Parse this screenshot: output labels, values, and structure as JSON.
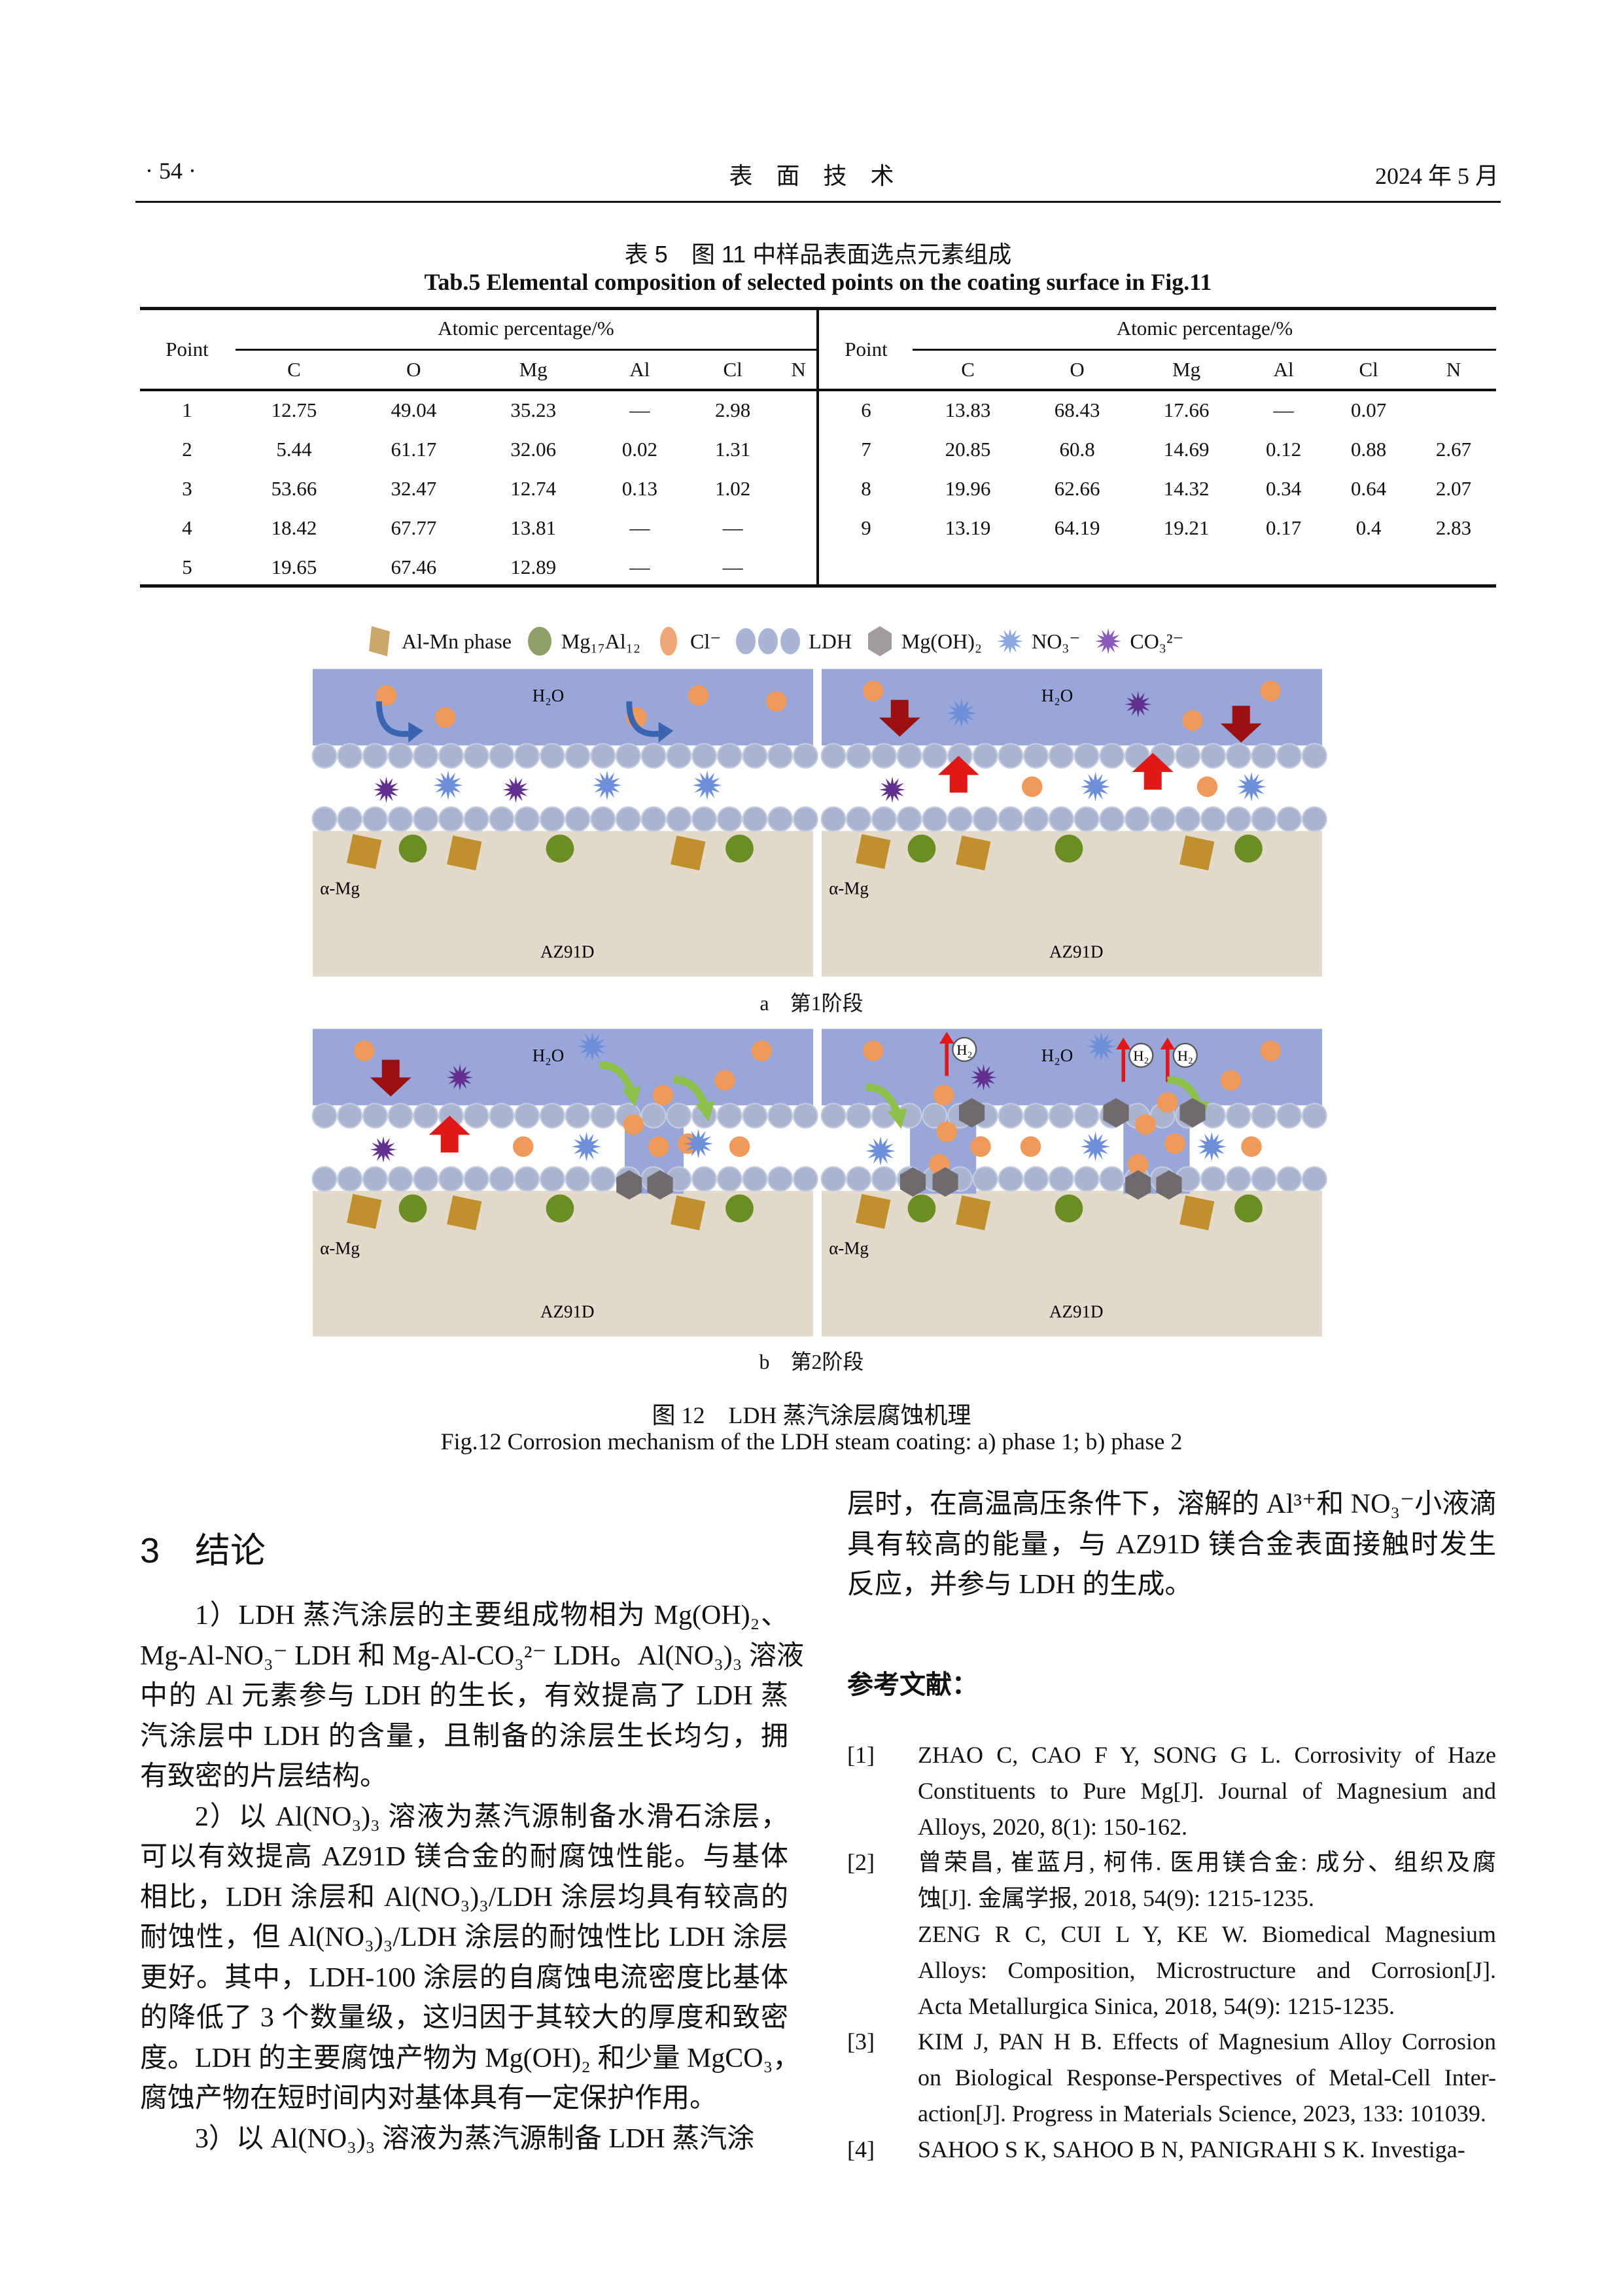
{
  "header": {
    "page": "· 54 ·",
    "journal": "表　面　技　术",
    "date": "2024 年 5 月"
  },
  "table": {
    "title_cn": "表 5　图 11 中样品表面选点元素组成",
    "title_en": "Tab.5 Elemental composition of selected points on the coating surface in Fig.11",
    "point_label": "Point",
    "group_label": "Atomic percentage/%",
    "columns": [
      "C",
      "O",
      "Mg",
      "Al",
      "Cl",
      "N"
    ],
    "left_rows": [
      [
        "1",
        "12.75",
        "49.04",
        "35.23",
        "—",
        "2.98",
        ""
      ],
      [
        "2",
        "5.44",
        "61.17",
        "32.06",
        "0.02",
        "1.31",
        ""
      ],
      [
        "3",
        "53.66",
        "32.47",
        "12.74",
        "0.13",
        "1.02",
        ""
      ],
      [
        "4",
        "18.42",
        "67.77",
        "13.81",
        "—",
        "—",
        ""
      ],
      [
        "5",
        "19.65",
        "67.46",
        "12.89",
        "—",
        "—",
        ""
      ]
    ],
    "right_rows": [
      [
        "6",
        "13.83",
        "68.43",
        "17.66",
        "—",
        "0.07",
        ""
      ],
      [
        "7",
        "20.85",
        "60.8",
        "14.69",
        "0.12",
        "0.88",
        "2.67"
      ],
      [
        "8",
        "19.96",
        "62.66",
        "14.32",
        "0.34",
        "0.64",
        "2.07"
      ],
      [
        "9",
        "13.19",
        "64.19",
        "19.21",
        "0.17",
        "0.4",
        "2.83"
      ]
    ]
  },
  "figure": {
    "legend": [
      {
        "icon": "al-mn-square",
        "label": "Al-Mn phase",
        "color": "#c9a86a"
      },
      {
        "icon": "green-circle",
        "label": "Mg₁₇Al₁₂",
        "color": "#8fa06a"
      },
      {
        "icon": "orange-circle",
        "label": "Cl⁻",
        "color": "#eea878"
      },
      {
        "icon": "ldh-circles",
        "label": "LDH",
        "color": "#aab4d4"
      },
      {
        "icon": "gray-hexagon",
        "label": "Mg(OH)₂",
        "color": "#a09c9c"
      },
      {
        "icon": "blue-star",
        "label": "NO₃⁻",
        "color": "#8fa8e0"
      },
      {
        "icon": "purple-star",
        "label": "CO₃²⁻",
        "color": "#8a5ab8"
      }
    ],
    "panel_text": {
      "water": "H₂O",
      "alpha": "α-Mg",
      "substrate": "AZ91D",
      "h2": "H₂"
    },
    "label_a": "a　第1阶段",
    "label_b": "b　第2阶段",
    "caption_cn": "图 12　LDH 蒸汽涂层腐蚀机理",
    "caption_en": "Fig.12 Corrosion mechanism of the LDH steam coating: a) phase 1; b) phase 2",
    "colors": {
      "water": "#98a6d9",
      "ldh": "#aab3cf",
      "substrate": "#e4dacb",
      "cl": "#ef9a5a",
      "mg17al12": "#6b8e23",
      "almn": "#bf902c",
      "no3": "#6d8fd8",
      "co3": "#62308f",
      "mgoh2": "#6e6a6e",
      "arrow_down": "#9a1010",
      "arrow_up": "#e01818"
    }
  },
  "section": {
    "heading": "3　结论"
  },
  "left_paragraphs": [
    [
      "1）LDH 蒸汽涂层的主要组成物相为 Mg(OH)₂、",
      "Mg-Al-NO₃⁻ LDH 和 Mg-Al-CO₃²⁻ LDH。Al(NO₃)₃ 溶液",
      "中的 Al 元素参与 LDH 的生长，有效提高了 LDH 蒸",
      "汽涂层中 LDH 的含量，且制备的涂层生长均匀，拥",
      "有致密的片层结构。"
    ],
    [
      "2）以 Al(NO₃)₃ 溶液为蒸汽源制备水滑石涂层，",
      "可以有效提高 AZ91D 镁合金的耐腐蚀性能。与基体",
      "相比，LDH 涂层和 Al(NO₃)₃/LDH 涂层均具有较高的",
      "耐蚀性，但 Al(NO₃)₃/LDH 涂层的耐蚀性比 LDH 涂层",
      "更好。其中，LDH-100 涂层的自腐蚀电流密度比基体",
      "的降低了 3 个数量级，这归因于其较大的厚度和致密",
      "度。LDH 的主要腐蚀产物为 Mg(OH)₂ 和少量 MgCO₃，",
      "腐蚀产物在短时间内对基体具有一定保护作用。"
    ],
    [
      "3）以 Al(NO₃)₃ 溶液为蒸汽源制备 LDH 蒸汽涂"
    ]
  ],
  "right_paragraph": [
    "层时，在高温高压条件下，溶解的 Al³⁺和 NO₃⁻小液滴",
    "具有较高的能量，与 AZ91D 镁合金表面接触时发生",
    "反应，并参与 LDH 的生成。"
  ],
  "references": {
    "heading": "参考文献：",
    "items": [
      {
        "num": "[1]",
        "lines": [
          "ZHAO C, CAO F Y, SONG G L. Corrosivity of Haze",
          "Constituents to Pure Mg[J]. Journal of Magnesium and",
          "Alloys, 2020, 8(1): 150-162."
        ]
      },
      {
        "num": "[2]",
        "lines": [
          "曾荣昌, 崔蓝月, 柯伟. 医用镁合金: 成分、组织及腐",
          "蚀[J]. 金属学报, 2018, 54(9): 1215-1235.",
          "ZENG R C, CUI L Y, KE W. Biomedical Magnesium",
          "Alloys: Composition, Microstructure and Corrosion[J].",
          "Acta Metallurgica Sinica, 2018, 54(9): 1215-1235."
        ]
      },
      {
        "num": "[3]",
        "lines": [
          "KIM J, PAN H B. Effects of Magnesium Alloy Corrosion",
          "on Biological Response-Perspectives of Metal-Cell Inter-",
          "action[J]. Progress in Materials Science, 2023, 133: 101039."
        ]
      },
      {
        "num": "[4]",
        "lines": [
          "SAHOO S K, SAHOO B N, PANIGRAHI S K. Investiga-"
        ]
      }
    ]
  }
}
